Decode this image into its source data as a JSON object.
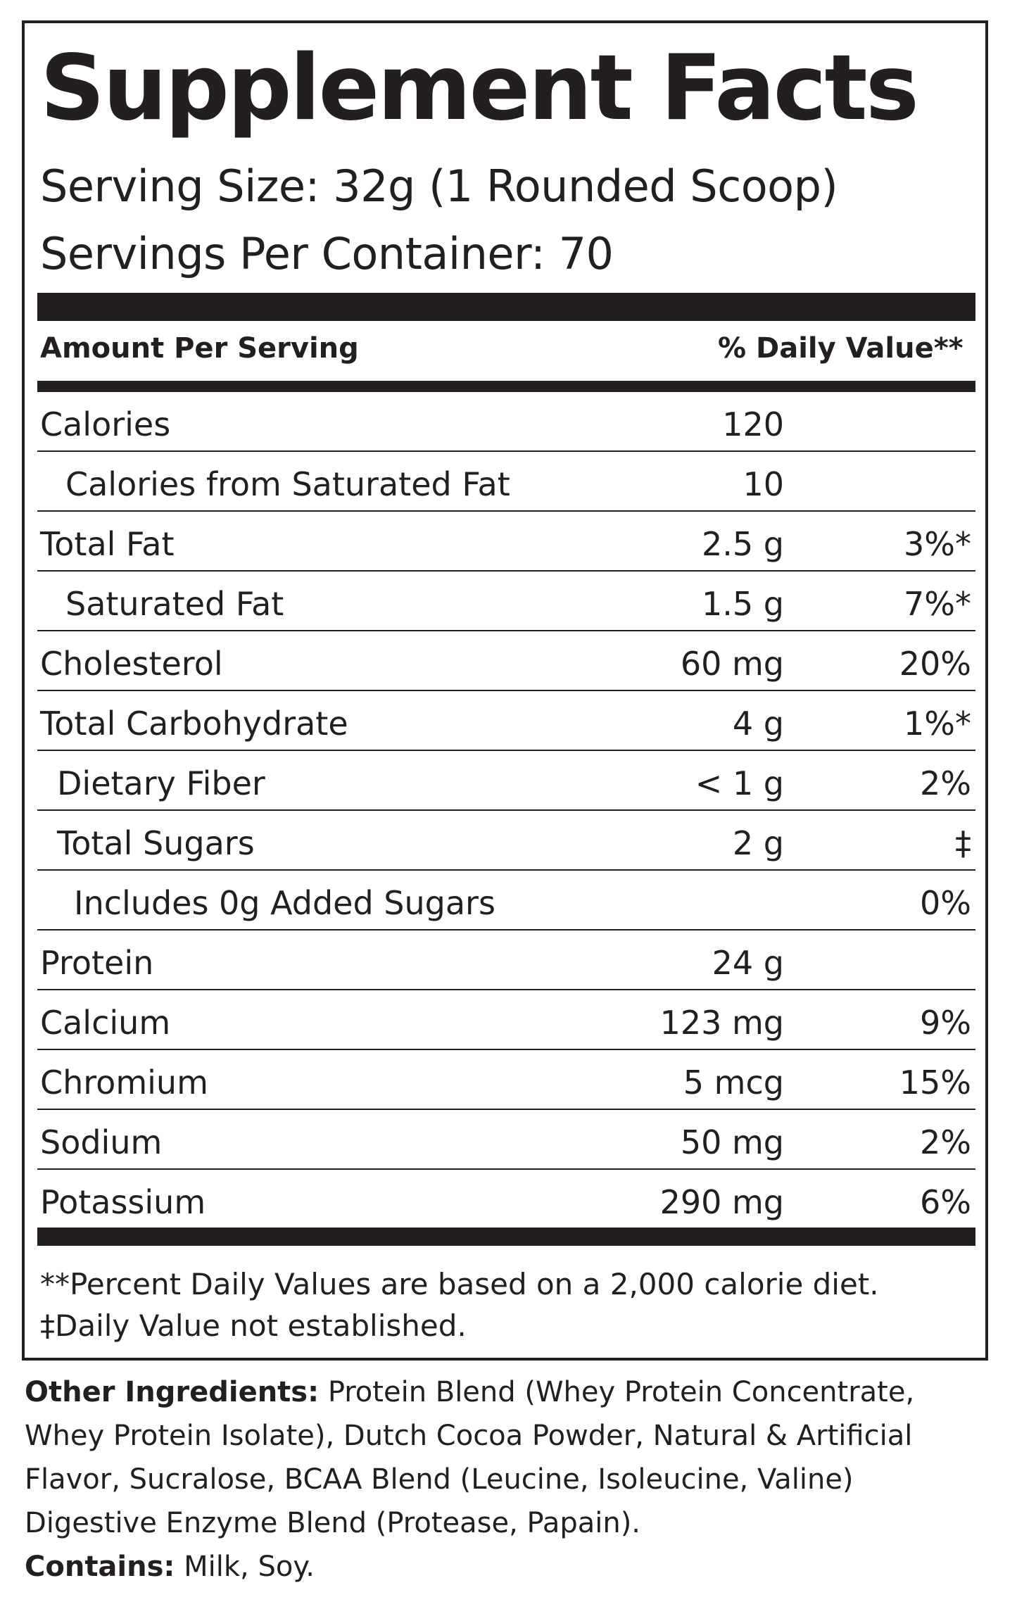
{
  "label": {
    "title": "Supplement Facts",
    "serving_size": "Serving Size: 32g (1 Rounded Scoop)",
    "servings_per_container": "Servings Per Container: 70",
    "header_left": "Amount Per Serving",
    "header_right": "% Daily Value**",
    "rows": [
      {
        "name": "Calories",
        "amount": "120",
        "dv": ""
      },
      {
        "name": "Calories from Saturated Fat",
        "amount": "10",
        "dv": ""
      },
      {
        "name": "Total Fat",
        "amount": "2.5 g",
        "dv": "3%*"
      },
      {
        "name": "Saturated Fat",
        "amount": "1.5 g",
        "dv": "7%*"
      },
      {
        "name": "Cholesterol",
        "amount": "60 mg",
        "dv": "20%"
      },
      {
        "name": "Total Carbohydrate",
        "amount": "4 g",
        "dv": "1%*"
      },
      {
        "name": "Dietary Fiber",
        "amount": "< 1 g",
        "dv": "2%"
      },
      {
        "name": "Total Sugars",
        "amount": "2 g",
        "dv": "‡"
      },
      {
        "name": "Includes 0g Added Sugars",
        "amount": "",
        "dv": "0%"
      },
      {
        "name": "Protein",
        "amount": "24 g",
        "dv": ""
      },
      {
        "name": "Calcium",
        "amount": "123 mg",
        "dv": "9%"
      },
      {
        "name": "Chromium",
        "amount": "5 mcg",
        "dv": "15%"
      },
      {
        "name": "Sodium",
        "amount": "50 mg",
        "dv": "2%"
      },
      {
        "name": "Potassium",
        "amount": "290 mg",
        "dv": "6%"
      }
    ],
    "footnote_1": "**Percent Daily Values are based on a 2,000 calorie diet.",
    "footnote_2": "‡Daily Value not established."
  },
  "ingredients": {
    "label": "Other Ingredients:",
    "lines": [
      " Protein Blend (Whey Protein Concentrate,",
      "Whey Protein Isolate), Dutch Cocoa Powder, Natural & Artificial",
      "Flavor, Sucralose, BCAA Blend (Leucine, Isoleucine, Valine)",
      "Digestive Enzyme Blend (Protease, Papain)."
    ],
    "contains_label": "Contains:",
    "contains_value": " Milk, Soy."
  }
}
